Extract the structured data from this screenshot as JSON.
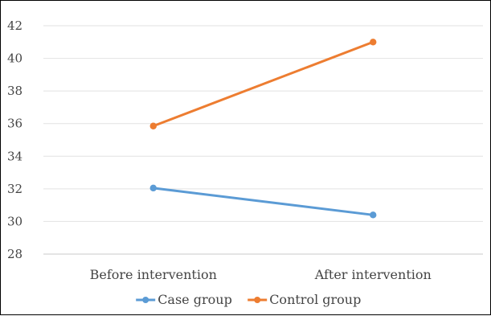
{
  "chart_data": {
    "type": "line",
    "categories": [
      "Before intervention",
      "After intervention"
    ],
    "series": [
      {
        "name": "Case group",
        "values": [
          32.05,
          30.4
        ],
        "color": "#5B9BD5"
      },
      {
        "name": "Control group",
        "values": [
          35.85,
          41.0
        ],
        "color": "#ED7D31"
      }
    ],
    "ylim": [
      28,
      42
    ],
    "yticks": [
      28,
      30,
      32,
      34,
      36,
      38,
      40,
      42
    ],
    "grid": true,
    "legend_position": "bottom"
  }
}
